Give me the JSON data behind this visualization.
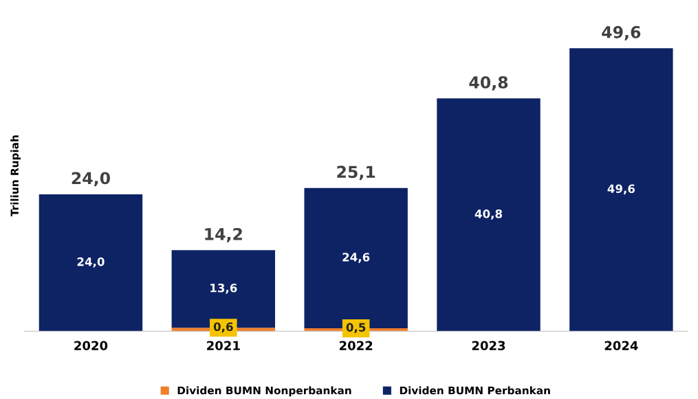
{
  "chart_data": {
    "type": "bar",
    "stacked": true,
    "ylabel": "Triliun Rupiah",
    "categories": [
      "2020",
      "2021",
      "2022",
      "2023",
      "2024"
    ],
    "series": [
      {
        "name": "Dividen BUMN Nonperbankan",
        "color": "#f07f2c",
        "values": [
          null,
          0.6,
          0.5,
          null,
          null
        ],
        "value_labels": [
          null,
          "0,6",
          "0,5",
          null,
          null
        ]
      },
      {
        "name": "Dividen BUMN Perbankan",
        "color": "#0d2364",
        "values": [
          24.0,
          13.6,
          24.6,
          40.8,
          49.6
        ],
        "value_labels": [
          "24,0",
          "13,6",
          "24,6",
          "40,8",
          "49,6"
        ]
      }
    ],
    "totals": [
      "24,0",
      "14,2",
      "25,1",
      "40,8",
      "49,6"
    ],
    "legend": "bottom",
    "grid": false
  }
}
